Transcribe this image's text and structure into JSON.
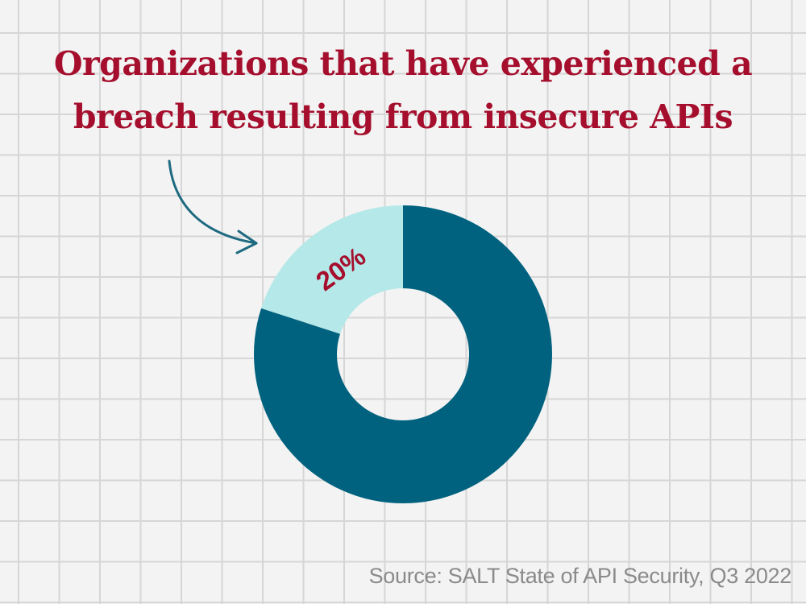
{
  "title": "Organizations that have experienced a breach resulting from insecure APIs",
  "source": "Source: SALT State of API Security, Q3 2022",
  "colors": {
    "title": "#a50f2d",
    "slice_highlight": "#b5e8e8",
    "slice_rest": "#00627f",
    "arrow": "#1e6a80",
    "label": "#a50f2d"
  },
  "chart_data": {
    "type": "pie",
    "variant": "donut",
    "title": "Organizations that have experienced a breach resulting from insecure APIs",
    "slices": [
      {
        "label": "20%",
        "value": 20,
        "color": "#b5e8e8"
      },
      {
        "label": "",
        "value": 80,
        "color": "#00627f"
      }
    ]
  }
}
